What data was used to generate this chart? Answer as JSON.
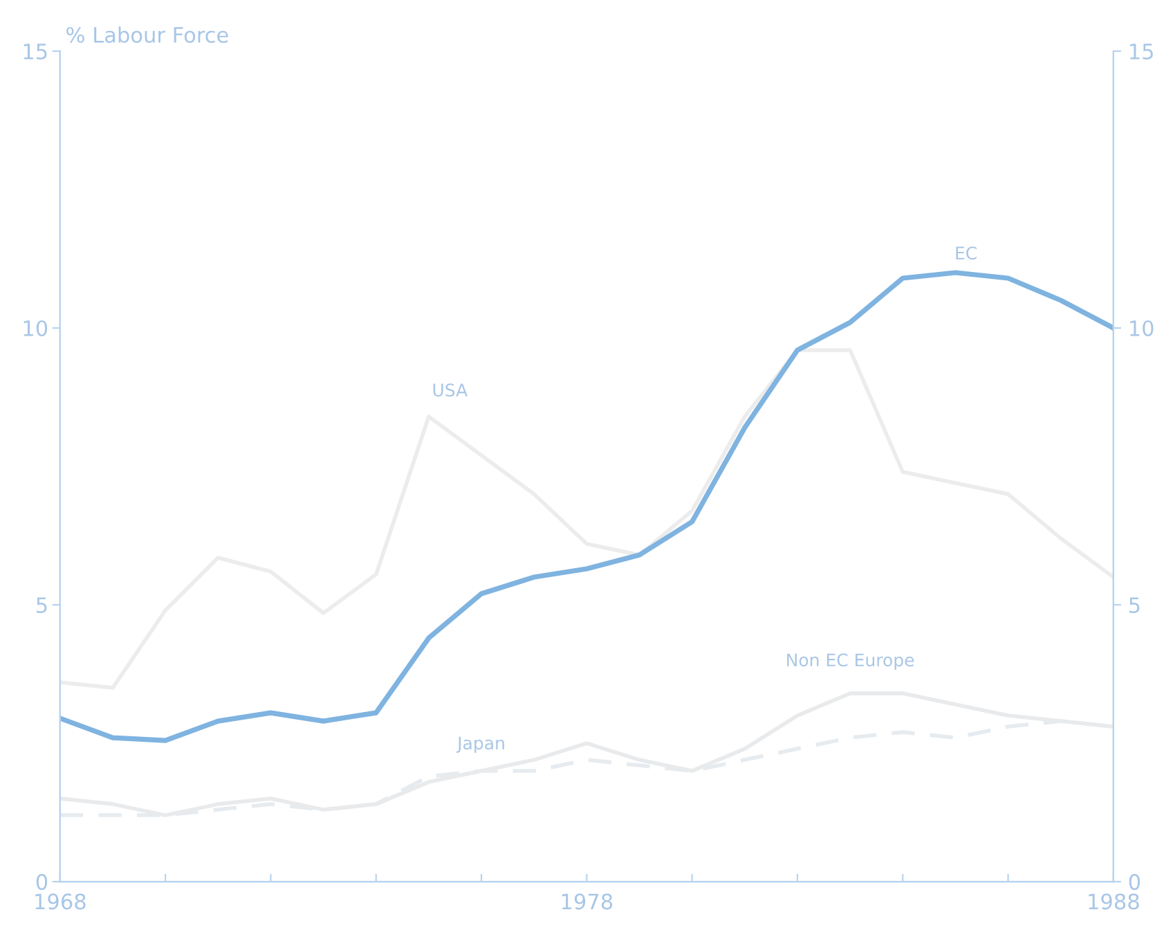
{
  "chart_data": {
    "type": "line",
    "ylabel": "% Labour Force",
    "x": [
      1968,
      1969,
      1970,
      1971,
      1972,
      1973,
      1974,
      1975,
      1976,
      1977,
      1978,
      1979,
      1980,
      1981,
      1982,
      1983,
      1984,
      1985,
      1986,
      1987,
      1988
    ],
    "series": [
      {
        "name": "USA",
        "color": "#ececec",
        "line_style": "solid",
        "values": [
          3.6,
          3.5,
          4.9,
          5.85,
          5.6,
          4.85,
          5.55,
          8.4,
          7.7,
          7.0,
          6.1,
          5.9,
          6.7,
          8.4,
          9.6,
          9.6,
          7.4,
          7.2,
          7.0,
          6.2,
          5.5
        ]
      },
      {
        "name": "Japan",
        "color": "#e6ebf0",
        "line_style": "dashed",
        "values": [
          1.2,
          1.2,
          1.2,
          1.3,
          1.4,
          1.3,
          1.4,
          1.9,
          2.0,
          2.0,
          2.2,
          2.1,
          2.0,
          2.2,
          2.4,
          2.6,
          2.7,
          2.6,
          2.8,
          2.9,
          2.8
        ]
      },
      {
        "name": "Non EC Europe",
        "color": "#e8eaec",
        "line_style": "solid",
        "values": [
          1.5,
          1.4,
          1.2,
          1.4,
          1.5,
          1.3,
          1.4,
          1.8,
          2.0,
          2.2,
          2.5,
          2.2,
          2.0,
          2.4,
          3.0,
          3.4,
          3.4,
          3.2,
          3.0,
          2.9,
          2.8
        ]
      },
      {
        "name": "EC",
        "color": "#7fb3e0",
        "line_style": "solid",
        "values": [
          2.95,
          2.6,
          2.55,
          2.9,
          3.05,
          2.9,
          3.05,
          4.4,
          5.2,
          5.5,
          5.65,
          5.9,
          6.5,
          8.2,
          9.6,
          10.1,
          10.9,
          11.0,
          10.9,
          10.5,
          10.0
        ]
      }
    ],
    "xlim": [
      1968,
      1988
    ],
    "xticks": [
      1968,
      {
        "value": 1970,
        "label": null
      },
      {
        "value": 1972,
        "label": null
      },
      {
        "value": 1974,
        "label": null
      },
      {
        "value": 1976,
        "label": null
      },
      1978,
      {
        "value": 1980,
        "label": null
      },
      {
        "value": 1982,
        "label": null
      },
      {
        "value": 1984,
        "label": null
      },
      {
        "value": 1986,
        "label": null
      },
      1988
    ],
    "ylim": [
      0,
      15
    ],
    "yticks": [
      0,
      5,
      10,
      15
    ],
    "y2lim": [
      0,
      15
    ],
    "y2ticks": [
      0,
      5,
      10,
      15
    ],
    "grid": false,
    "legend": false,
    "marker": "none"
  }
}
